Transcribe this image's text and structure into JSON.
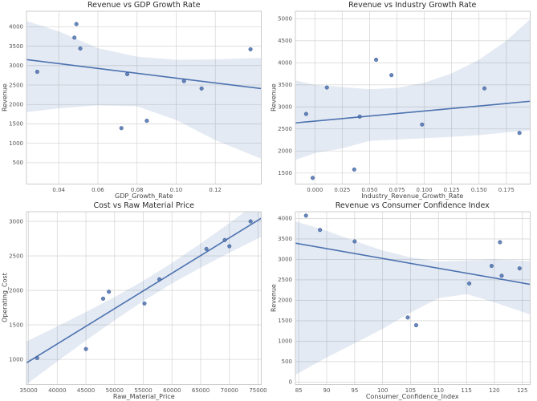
{
  "figure": {
    "background": "#ffffff",
    "accent_color": "#4c72b0",
    "band_color": "rgba(76,114,176,0.15)",
    "grid_color": "#d9d9d9",
    "layout": "2x2-scatter-regression-grid"
  },
  "chart_data": [
    {
      "type": "scatter",
      "title": "Revenue vs GDP Growth Rate",
      "xlabel": "GDP_Growth_Rate",
      "ylabel": "Revenue",
      "grid": true,
      "legend": "none",
      "xlim": [
        0.0235,
        0.1435
      ],
      "ylim": [
        -50,
        4400
      ],
      "xticks": {
        "values": [
          0.04,
          0.06,
          0.08,
          0.1,
          0.12
        ],
        "labels": [
          "0.04",
          "0.06",
          "0.08",
          "0.10",
          "0.12"
        ]
      },
      "yticks": {
        "values": [
          500,
          1000,
          1500,
          2000,
          2500,
          3000,
          3500,
          4000
        ],
        "labels": [
          "500",
          "1000",
          "1500",
          "2000",
          "2500",
          "3000",
          "3500",
          "4000"
        ]
      },
      "points": [
        [
          0.029,
          2840
        ],
        [
          0.048,
          3720
        ],
        [
          0.049,
          4070
        ],
        [
          0.051,
          3440
        ],
        [
          0.072,
          1390
        ],
        [
          0.075,
          2780
        ],
        [
          0.085,
          1580
        ],
        [
          0.104,
          2600
        ],
        [
          0.113,
          2410
        ],
        [
          0.138,
          3420
        ]
      ],
      "trend": {
        "x": [
          0.0235,
          0.1435
        ],
        "y": [
          3154,
          2408
        ]
      },
      "band": {
        "x": [
          0.0235,
          0.04,
          0.06,
          0.08,
          0.1,
          0.12,
          0.1435
        ],
        "upper": [
          4150,
          3880,
          3450,
          3230,
          3150,
          3160,
          3200
        ],
        "lower": [
          1800,
          1900,
          1975,
          1950,
          1600,
          1080,
          600
        ]
      }
    },
    {
      "type": "scatter",
      "title": "Revenue vs Industry Growth Rate",
      "xlabel": "Industry_Revenue_Growth_Rate",
      "ylabel": "Revenue",
      "grid": true,
      "legend": "none",
      "xlim": [
        -0.0178,
        0.1968
      ],
      "ylim": [
        1250,
        5170
      ],
      "xticks": {
        "values": [
          0.0,
          0.025,
          0.05,
          0.075,
          0.1,
          0.125,
          0.15,
          0.175
        ],
        "labels": [
          "0.000",
          "0.025",
          "0.050",
          "0.075",
          "0.100",
          "0.125",
          "0.150",
          "0.175"
        ]
      },
      "yticks": {
        "values": [
          1500,
          2000,
          2500,
          3000,
          3500,
          4000,
          4500,
          5000
        ],
        "labels": [
          "1500",
          "2000",
          "2500",
          "3000",
          "3500",
          "4000",
          "4500",
          "5000"
        ]
      },
      "points": [
        [
          -0.008,
          2840
        ],
        [
          -0.002,
          1390
        ],
        [
          0.011,
          3440
        ],
        [
          0.036,
          1580
        ],
        [
          0.041,
          2780
        ],
        [
          0.056,
          4070
        ],
        [
          0.07,
          3720
        ],
        [
          0.098,
          2600
        ],
        [
          0.155,
          3420
        ],
        [
          0.187,
          2410
        ]
      ],
      "trend": {
        "x": [
          -0.0178,
          0.1968
        ],
        "y": [
          2637,
          3128
        ]
      },
      "band": {
        "x": [
          -0.0178,
          0.0,
          0.025,
          0.05,
          0.075,
          0.1,
          0.125,
          0.15,
          0.175,
          0.1968
        ],
        "upper": [
          3600,
          3500,
          3450,
          3400,
          3430,
          3550,
          3760,
          4070,
          4500,
          4990
        ],
        "lower": [
          1800,
          1950,
          2060,
          2230,
          2260,
          2290,
          2320,
          2360,
          2420,
          2470
        ]
      }
    },
    {
      "type": "scatter",
      "title": "Cost vs Raw Material Price",
      "xlabel": "Raw_Material_Price",
      "ylabel": "Operating_Cost",
      "grid": true,
      "legend": "none",
      "xlim": [
        34640,
        75560
      ],
      "ylim": [
        635,
        3140
      ],
      "xticks": {
        "values": [
          35000,
          40000,
          45000,
          50000,
          55000,
          60000,
          65000,
          70000,
          75000
        ],
        "labels": [
          "35000",
          "40000",
          "45000",
          "50000",
          "55000",
          "60000",
          "65000",
          "70000",
          "75000"
        ]
      },
      "yticks": {
        "values": [
          1000,
          1500,
          2000,
          2500,
          3000
        ],
        "labels": [
          "1000",
          "1500",
          "2000",
          "2500",
          "3000"
        ]
      },
      "points": [
        [
          36500,
          1020
        ],
        [
          45000,
          1150
        ],
        [
          48000,
          1880
        ],
        [
          49000,
          1980
        ],
        [
          55200,
          1810
        ],
        [
          57800,
          2160
        ],
        [
          66000,
          2600
        ],
        [
          69200,
          2730
        ],
        [
          70000,
          2640
        ],
        [
          73700,
          3000
        ]
      ],
      "trend": {
        "x": [
          34640,
          75560
        ],
        "y": [
          949,
          3046
        ]
      },
      "band": {
        "x": [
          34640,
          40000,
          45000,
          50000,
          55000,
          60000,
          65000,
          70000,
          75560
        ],
        "upper": [
          1260,
          1478,
          1687,
          1905,
          2139,
          2398,
          2680,
          2976,
          3315
        ],
        "lower": [
          638,
          970,
          1273,
          1567,
          1845,
          2100,
          2330,
          2546,
          2777
        ]
      }
    },
    {
      "type": "scatter",
      "title": "Revenue vs Consumer Confidence Index",
      "xlabel": "Consumer_Confidence_Index",
      "ylabel": "Revenue",
      "grid": true,
      "legend": "none",
      "xlim": [
        84.4,
        126.4
      ],
      "ylim": [
        -60,
        4165
      ],
      "xticks": {
        "values": [
          85,
          90,
          95,
          100,
          105,
          110,
          115,
          120,
          125
        ],
        "labels": [
          "85",
          "90",
          "95",
          "100",
          "105",
          "110",
          "115",
          "120",
          "125"
        ]
      },
      "yticks": {
        "values": [
          0,
          500,
          1000,
          1500,
          2000,
          2500,
          3000,
          3500,
          4000
        ],
        "labels": [
          "0",
          "500",
          "1000",
          "1500",
          "2000",
          "2500",
          "3000",
          "3500",
          "4000"
        ]
      },
      "points": [
        [
          86.3,
          4070
        ],
        [
          88.8,
          3720
        ],
        [
          95,
          3440
        ],
        [
          104.5,
          1580
        ],
        [
          106,
          1390
        ],
        [
          115.5,
          2410
        ],
        [
          119.5,
          2840
        ],
        [
          121,
          3420
        ],
        [
          121.3,
          2600
        ],
        [
          124.5,
          2780
        ]
      ],
      "trend": {
        "x": [
          84.4,
          126.4
        ],
        "y": [
          3397,
          2390
        ]
      },
      "band": {
        "x": [
          84.4,
          90,
          95,
          100,
          105,
          110,
          115,
          120,
          126.4
        ],
        "upper": [
          3930,
          3700,
          3450,
          3220,
          3050,
          2950,
          2975,
          3000,
          2960
        ],
        "lower": [
          180,
          600,
          950,
          1300,
          1700,
          2050,
          2150,
          1950,
          1650
        ]
      }
    }
  ]
}
